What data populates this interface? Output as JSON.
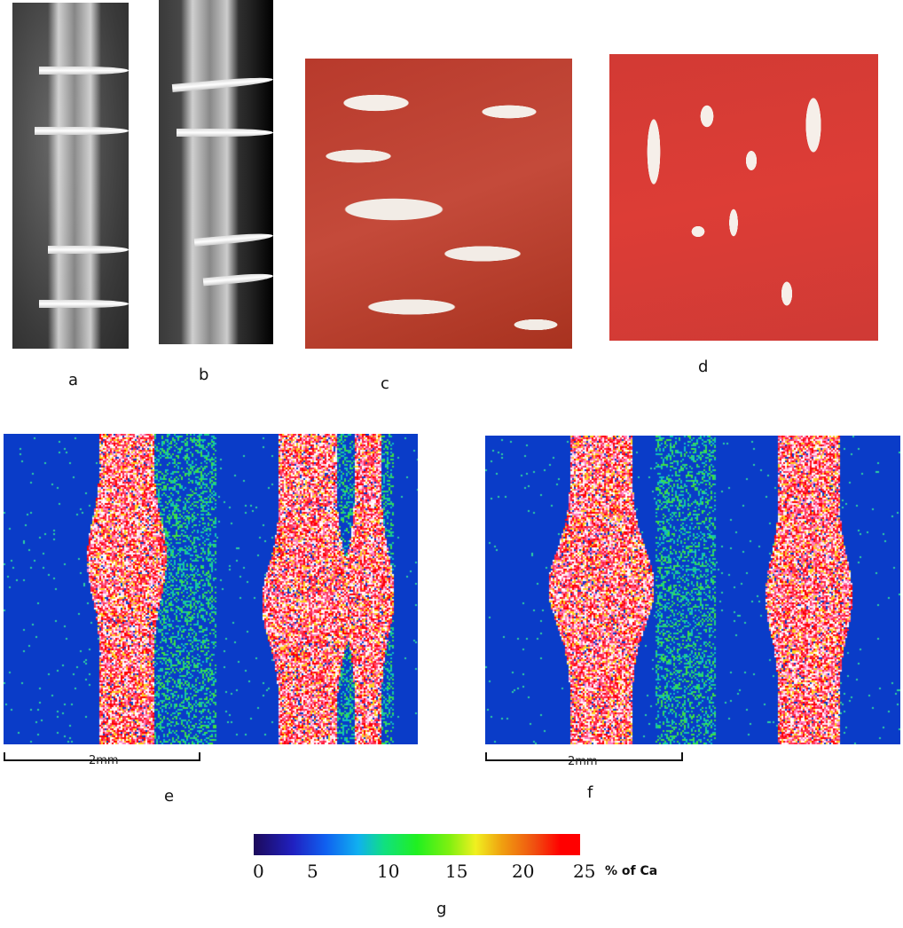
{
  "panels": {
    "a": {
      "label": "a"
    },
    "b": {
      "label": "b"
    },
    "c": {
      "label": "c"
    },
    "d": {
      "label": "d"
    },
    "e": {
      "label": "e",
      "scale_bar": "2mm"
    },
    "f": {
      "label": "f",
      "scale_bar": "2mm"
    },
    "g": {
      "label": "g"
    }
  },
  "colorbar": {
    "ticks": [
      "0",
      "5",
      "10",
      "15",
      "20",
      "25"
    ],
    "unit": "% of Ca",
    "range": [
      0,
      25
    ],
    "colors": [
      "#1c0a5a",
      "#2020c0",
      "#10b0f0",
      "#20f020",
      "#f0f020",
      "#f05010",
      "#ff0000"
    ]
  }
}
